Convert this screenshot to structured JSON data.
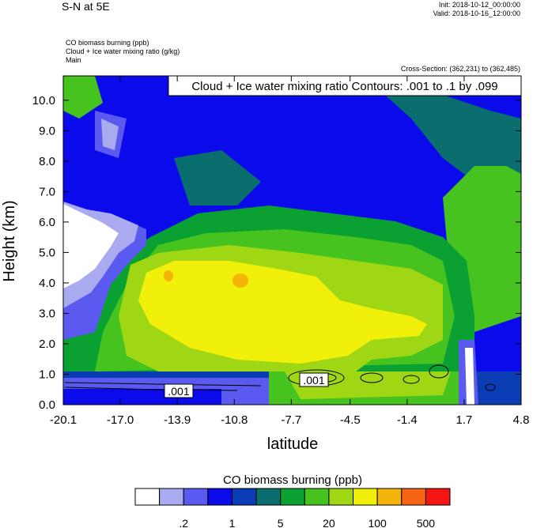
{
  "header": {
    "title": "S-N at 5E",
    "init": "Init: 2018-10-12_00:00:00",
    "valid": "Valid: 2018-10-16_12:00:00"
  },
  "variables": {
    "line1": "CO biomass burning   (ppb)",
    "line2": "Cloud + Ice water mixing ratio   (g/kg)",
    "line3": "Main",
    "cross_section": "Cross-Section: (362,231) to (362,485)"
  },
  "chart_data": {
    "type": "heatmap",
    "contour_overlay_title": "Cloud + Ice water mixing ratio Contours: .001 to .1 by .099",
    "contour_labels": [
      ".001",
      ".001"
    ],
    "xlabel": "latitude",
    "ylabel": "Height (km)",
    "xlim": [
      -20.1,
      4.8
    ],
    "ylim": [
      0.0,
      10.8
    ],
    "x_ticks": [
      -20.1,
      -17.0,
      -13.9,
      -10.8,
      -7.7,
      -4.5,
      -1.4,
      1.7,
      4.8
    ],
    "x_tick_labels": [
      "-20.1",
      "-17.0",
      "-13.9",
      "-10.8",
      "-7.7",
      "-4.5",
      "-1.4",
      "1.7",
      "4.8"
    ],
    "y_ticks": [
      0,
      1,
      2,
      3,
      4,
      5,
      6,
      7,
      8,
      9,
      10
    ],
    "y_tick_labels": [
      "0.0",
      "1.0",
      "2.0",
      "3.0",
      "4.0",
      "5.0",
      "6.0",
      "7.0",
      "8.0",
      "9.0",
      "10.0"
    ],
    "colorbar_title": "CO biomass burning  (ppb)",
    "colorbar_colors": [
      "#ffffff",
      "#aaaaf0",
      "#5a5af0",
      "#0a0aeb",
      "#0a3cb4",
      "#0a6e6e",
      "#0aa032",
      "#46c31e",
      "#a0d714",
      "#f0f00a",
      "#f5b40a",
      "#f56414",
      "#f51414"
    ],
    "colorbar_labels": [
      {
        "text": ".2",
        "boundary": 2
      },
      {
        "text": "1",
        "boundary": 4
      },
      {
        "text": "5",
        "boundary": 6
      },
      {
        "text": "20",
        "boundary": 8
      },
      {
        "text": "100",
        "boundary": 10
      },
      {
        "text": "500",
        "boundary": 12
      }
    ]
  }
}
